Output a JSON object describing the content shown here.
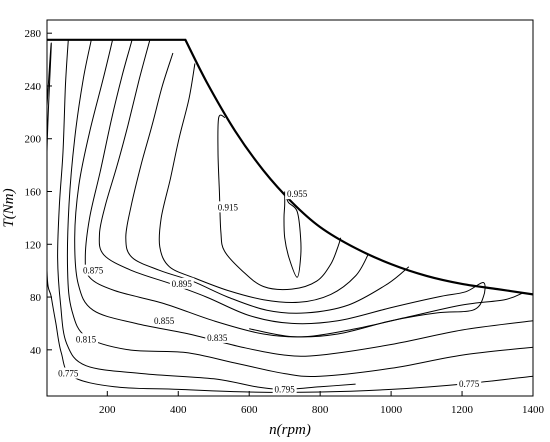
{
  "chart_data": {
    "type": "contour",
    "title": "",
    "xlabel": "n(rpm)",
    "ylabel": "T(Nm)",
    "xlim": [
      30,
      1400
    ],
    "ylim": [
      5,
      290
    ],
    "x_ticks": [
      200,
      400,
      600,
      800,
      1000,
      1200,
      1400
    ],
    "y_ticks": [
      40,
      80,
      120,
      160,
      200,
      240,
      280
    ],
    "envelope": {
      "name": "max torque curve",
      "points": [
        [
          30,
          275
        ],
        [
          420,
          275
        ],
        [
          480,
          243
        ],
        [
          560,
          206
        ],
        [
          640,
          176
        ],
        [
          720,
          152
        ],
        [
          800,
          133
        ],
        [
          900,
          117
        ],
        [
          1000,
          105
        ],
        [
          1100,
          96
        ],
        [
          1200,
          90
        ],
        [
          1300,
          86
        ],
        [
          1400,
          82
        ]
      ]
    },
    "contours": [
      {
        "level": 0.775,
        "label": "0.775",
        "points": [
          [
            30,
            225
          ],
          [
            42,
            272
          ],
          [
            30,
            190
          ],
          [
            30,
            100
          ],
          [
            42,
            80
          ],
          [
            55,
            60
          ],
          [
            70,
            38
          ],
          [
            100,
            20
          ],
          [
            220,
            12
          ],
          [
            400,
            10
          ],
          [
            600,
            8
          ],
          [
            800,
            8
          ],
          [
            1000,
            10
          ],
          [
            1200,
            14
          ],
          [
            1400,
            20
          ]
        ]
      },
      {
        "level": 0.795,
        "label": "0.795",
        "points": [
          [
            90,
            275
          ],
          [
            82,
            240
          ],
          [
            75,
            190
          ],
          [
            65,
            150
          ],
          [
            60,
            110
          ],
          [
            68,
            75
          ],
          [
            85,
            45
          ],
          [
            140,
            28
          ],
          [
            300,
            22
          ],
          [
            500,
            18
          ],
          [
            620,
            12
          ],
          [
            700,
            10
          ],
          [
            800,
            12
          ],
          [
            900,
            14
          ]
        ]
      },
      {
        "level": 0.815,
        "label": "0.815",
        "points": [
          [
            155,
            275
          ],
          [
            132,
            245
          ],
          [
            108,
            200
          ],
          [
            92,
            150
          ],
          [
            88,
            100
          ],
          [
            100,
            70
          ],
          [
            140,
            50
          ],
          [
            260,
            40
          ],
          [
            420,
            38
          ],
          [
            560,
            30
          ],
          [
            700,
            22
          ],
          [
            800,
            20
          ],
          [
            1000,
            26
          ],
          [
            1200,
            36
          ],
          [
            1400,
            42
          ]
        ]
      },
      {
        "level": 0.835,
        "label": "0.835",
        "points": [
          [
            215,
            275
          ],
          [
            188,
            245
          ],
          [
            150,
            205
          ],
          [
            120,
            165
          ],
          [
            108,
            125
          ],
          [
            118,
            90
          ],
          [
            160,
            70
          ],
          [
            280,
            60
          ],
          [
            430,
            52
          ],
          [
            580,
            42
          ],
          [
            700,
            36
          ],
          [
            800,
            36
          ],
          [
            1000,
            44
          ],
          [
            1200,
            55
          ],
          [
            1400,
            62
          ]
        ]
      },
      {
        "level": 0.855,
        "label": "0.855",
        "points": [
          [
            270,
            275
          ],
          [
            242,
            248
          ],
          [
            212,
            215
          ],
          [
            180,
            175
          ],
          [
            150,
            140
          ],
          [
            138,
            110
          ],
          [
            150,
            95
          ],
          [
            220,
            85
          ],
          [
            360,
            75
          ],
          [
            500,
            62
          ],
          [
            640,
            52
          ],
          [
            760,
            50
          ],
          [
            900,
            56
          ],
          [
            1050,
            65
          ],
          [
            1200,
            74
          ],
          [
            1320,
            78
          ],
          [
            1370,
            83
          ]
        ]
      },
      {
        "level": 0.875,
        "label": "0.875",
        "points": [
          [
            320,
            275
          ],
          [
            290,
            245
          ],
          [
            258,
            210
          ],
          [
            228,
            180
          ],
          [
            195,
            150
          ],
          [
            178,
            128
          ],
          [
            190,
            112
          ],
          [
            270,
            100
          ],
          [
            380,
            90
          ],
          [
            480,
            80
          ],
          [
            600,
            66
          ],
          [
            720,
            60
          ],
          [
            850,
            62
          ],
          [
            1000,
            72
          ],
          [
            1130,
            80
          ],
          [
            1210,
            84
          ],
          [
            1260,
            91
          ],
          [
            1260,
            80
          ],
          [
            1230,
            70
          ],
          [
            1130,
            68
          ],
          [
            1000,
            62
          ],
          [
            850,
            52
          ],
          [
            720,
            50
          ],
          [
            600,
            56
          ]
        ]
      },
      {
        "level": 0.895,
        "label": "0.895",
        "points": [
          [
            385,
            265
          ],
          [
            355,
            240
          ],
          [
            326,
            210
          ],
          [
            295,
            180
          ],
          [
            268,
            150
          ],
          [
            252,
            125
          ],
          [
            270,
            110
          ],
          [
            350,
            100
          ],
          [
            440,
            92
          ],
          [
            540,
            80
          ],
          [
            650,
            70
          ],
          [
            760,
            68
          ],
          [
            880,
            74
          ],
          [
            990,
            90
          ],
          [
            1050,
            103
          ]
        ]
      },
      {
        "level": 0.915,
        "label": "0.915",
        "points": [
          [
            447,
            257
          ],
          [
            430,
            230
          ],
          [
            402,
            200
          ],
          [
            378,
            170
          ],
          [
            352,
            140
          ],
          [
            348,
            118
          ],
          [
            375,
            103
          ],
          [
            450,
            94
          ],
          [
            540,
            85
          ],
          [
            640,
            78
          ],
          [
            740,
            76
          ],
          [
            830,
            82
          ],
          [
            900,
            96
          ],
          [
            935,
            112
          ]
        ]
      },
      {
        "level": 0.935,
        "label": "",
        "points": [
          [
            532,
            216
          ],
          [
            514,
            216
          ],
          [
            512,
            190
          ],
          [
            516,
            160
          ],
          [
            520,
            130
          ],
          [
            530,
            115
          ],
          [
            580,
            100
          ],
          [
            640,
            88
          ],
          [
            720,
            86
          ],
          [
            790,
            92
          ],
          [
            830,
            105
          ],
          [
            850,
            118
          ],
          [
            858,
            125
          ]
        ]
      },
      {
        "level": 0.955,
        "label": "0.955",
        "points": [
          [
            700,
            160
          ],
          [
            700,
            150
          ],
          [
            698,
            140
          ],
          [
            700,
            125
          ],
          [
            712,
            110
          ],
          [
            735,
            95
          ],
          [
            745,
            110
          ],
          [
            745,
            125
          ],
          [
            735,
            145
          ],
          [
            710,
            152
          ],
          [
            700,
            160
          ]
        ]
      }
    ],
    "contour_labels": [
      {
        "text": "0.775",
        "n": 90,
        "T": 22
      },
      {
        "text": "0.795",
        "n": 700,
        "T": 10
      },
      {
        "text": "0.775",
        "n": 1220,
        "T": 14
      },
      {
        "text": "0.815",
        "n": 140,
        "T": 48
      },
      {
        "text": "0.835",
        "n": 510,
        "T": 49
      },
      {
        "text": "0.855",
        "n": 360,
        "T": 62
      },
      {
        "text": "0.875",
        "n": 160,
        "T": 100
      },
      {
        "text": "0.895",
        "n": 410,
        "T": 90
      },
      {
        "text": "0.915",
        "n": 540,
        "T": 148
      },
      {
        "text": "0.955",
        "n": 735,
        "T": 158
      }
    ]
  }
}
